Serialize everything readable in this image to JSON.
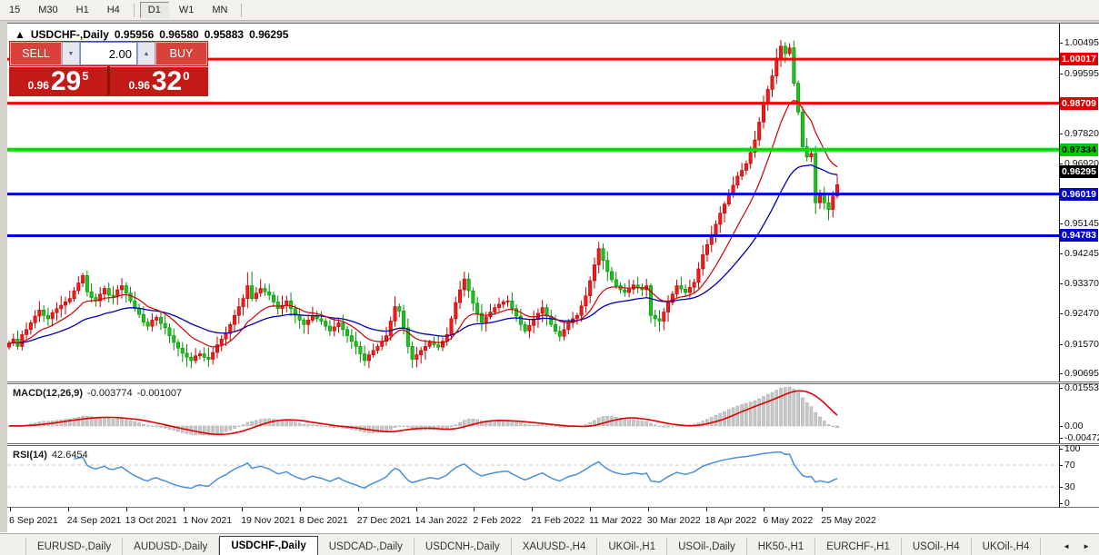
{
  "toolbar": {
    "timeframes": [
      {
        "label": "15",
        "active": false
      },
      {
        "label": "M30",
        "active": false
      },
      {
        "label": "H1",
        "active": false
      },
      {
        "label": "H4",
        "active": false
      },
      {
        "label": "D1",
        "active": true
      },
      {
        "label": "W1",
        "active": false
      },
      {
        "label": "MN",
        "active": false
      }
    ]
  },
  "title": {
    "collapse_icon": "▲",
    "symbol": "USDCHF-,Daily",
    "open": "0.95956",
    "high": "0.96580",
    "low": "0.95883",
    "close": "0.96295"
  },
  "trade_panel": {
    "sell_label": "SELL",
    "buy_label": "BUY",
    "volume": "2.00",
    "spinner_down_icon": "▼",
    "spinner_up_icon": "▲",
    "sell_price": {
      "prefix": "0.96",
      "big": "29",
      "sup": "5"
    },
    "buy_price": {
      "prefix": "0.96",
      "big": "32",
      "sup": "0"
    }
  },
  "indicators": {
    "macd": {
      "name": "MACD(12,26,9)",
      "value_main": "-0.003774",
      "value_signal": "-0.001007"
    },
    "rsi": {
      "name": "RSI(14)",
      "value": "42.6454"
    }
  },
  "chart_data": {
    "type": "candlestick",
    "symbol": "USDCHF-,Daily",
    "ylim": [
      0.9046,
      1.0107
    ],
    "y_ticks": [
      1.00495,
      0.99595,
      0.9782,
      0.9692,
      0.95145,
      0.94245,
      0.9337,
      0.9247,
      0.9157,
      0.90695
    ],
    "x_ticks": [
      "6 Sep 2021",
      "24 Sep 2021",
      "13 Oct 2021",
      "1 Nov 2021",
      "19 Nov 2021",
      "8 Dec 2021",
      "27 Dec 2021",
      "14 Jan 2022",
      "2 Feb 2022",
      "21 Feb 2022",
      "11 Mar 2022",
      "30 Mar 2022",
      "18 Apr 2022",
      "6 May 2022",
      "25 May 2022"
    ],
    "h_lines": [
      {
        "price": 1.00017,
        "color": "#FF0000",
        "width": 3,
        "badge_bg": "#E00000",
        "badge_fg": "#fff"
      },
      {
        "price": 0.98709,
        "color": "#FF0000",
        "width": 3,
        "badge_bg": "#E00000",
        "badge_fg": "#fff"
      },
      {
        "price": 0.97334,
        "color": "#00DD00",
        "width": 4,
        "badge_bg": "#00CC00",
        "badge_fg": "#000"
      },
      {
        "price": 0.96019,
        "color": "#0000E0",
        "width": 3,
        "badge_bg": "#0000D0",
        "badge_fg": "#fff"
      },
      {
        "price": 0.94783,
        "color": "#0000E0",
        "width": 3,
        "badge_bg": "#0000D0",
        "badge_fg": "#fff"
      }
    ],
    "current_price": {
      "value": 0.96295,
      "badge_bg": "#000000",
      "badge_fg": "#fff"
    },
    "colors": {
      "bull_fill": "#EE1C1C",
      "bull_stroke": "#C00000",
      "bear_fill": "#1FC11F",
      "bear_stroke": "#009000",
      "ma_fast": "#CC0000",
      "ma_slow": "#0000B0",
      "macd_bar": "#C6C6C6",
      "macd_bar_edge": "#ADADAD",
      "macd_signal": "#DD0000",
      "rsi_line": "#4A90D9",
      "level_dash": "#C8C8C8"
    },
    "ma_fast_period": 13,
    "ma_slow_period": 34,
    "candles": {
      "first_open": 0.9148,
      "closes": [
        0.916,
        0.9172,
        0.915,
        0.9185,
        0.92,
        0.922,
        0.924,
        0.9258,
        0.9242,
        0.9232,
        0.925,
        0.9262,
        0.9272,
        0.9282,
        0.9292,
        0.9315,
        0.9338,
        0.936,
        0.9312,
        0.9295,
        0.9285,
        0.9305,
        0.9322,
        0.9302,
        0.9298,
        0.9318,
        0.933,
        0.9308,
        0.9285,
        0.9262,
        0.9245,
        0.9222,
        0.921,
        0.9228,
        0.9236,
        0.9218,
        0.9205,
        0.9182,
        0.9162,
        0.9145,
        0.913,
        0.9118,
        0.9108,
        0.9122,
        0.9128,
        0.9118,
        0.9112,
        0.9132,
        0.9155,
        0.9172,
        0.9188,
        0.9215,
        0.9242,
        0.9268,
        0.9292,
        0.933,
        0.9292,
        0.9308,
        0.9322,
        0.9312,
        0.9302,
        0.9282,
        0.9262,
        0.9272,
        0.9285,
        0.9262,
        0.9242,
        0.9228,
        0.9215,
        0.9228,
        0.9242,
        0.9232,
        0.9225,
        0.921,
        0.9196,
        0.9208,
        0.922,
        0.92,
        0.9182,
        0.9165,
        0.915,
        0.9128,
        0.9108,
        0.9125,
        0.9138,
        0.915,
        0.9165,
        0.9182,
        0.9225,
        0.9268,
        0.9255,
        0.9205,
        0.915,
        0.9112,
        0.9125,
        0.9138,
        0.915,
        0.9162,
        0.9155,
        0.9148,
        0.9165,
        0.9185,
        0.9232,
        0.928,
        0.9318,
        0.935,
        0.9315,
        0.9278,
        0.9248,
        0.9222,
        0.9238,
        0.9252,
        0.9265,
        0.9275,
        0.9282,
        0.9285,
        0.9262,
        0.924,
        0.9215,
        0.9196,
        0.9212,
        0.923,
        0.9248,
        0.9265,
        0.924,
        0.9215,
        0.9195,
        0.918,
        0.92,
        0.922,
        0.9232,
        0.9242,
        0.927,
        0.93,
        0.9345,
        0.9392,
        0.944,
        0.9405,
        0.9372,
        0.9348,
        0.933,
        0.9318,
        0.931,
        0.932,
        0.9332,
        0.9325,
        0.9318,
        0.933,
        0.9242,
        0.9232,
        0.9225,
        0.9252,
        0.928,
        0.9305,
        0.933,
        0.932,
        0.931,
        0.9325,
        0.934,
        0.938,
        0.9422,
        0.9452,
        0.9482,
        0.9512,
        0.9545,
        0.9572,
        0.96,
        0.9628,
        0.9655,
        0.9672,
        0.9692,
        0.9725,
        0.9762,
        0.9815,
        0.987,
        0.9912,
        0.9952,
        1.0005,
        1.004,
        1.0018,
        1.0035,
        0.993,
        0.9845,
        0.9742,
        0.9712,
        0.9722,
        0.9576,
        0.9605,
        0.9576,
        0.9556,
        0.9596,
        0.96295
      ],
      "last_ohlc": [
        0.95956,
        0.9658,
        0.95883,
        0.96295
      ],
      "high_overrides": {
        "17": 0.9368,
        "18": 0.9375,
        "55": 0.937,
        "56": 0.9372,
        "89": 0.9298,
        "105": 0.9372,
        "106": 0.9368,
        "136": 0.946,
        "137": 0.9455,
        "178": 1.0058,
        "179": 1.0052,
        "180": 1.0049
      },
      "low_overrides": {
        "42": 0.9085,
        "46": 0.909,
        "82": 0.9092,
        "83": 0.9086,
        "93": 0.9086,
        "119": 0.9188,
        "127": 0.9164,
        "150": 0.9194,
        "183": 0.9728,
        "186": 0.9543,
        "189": 0.9524
      }
    },
    "macd_panel": {
      "ticks": [
        {
          "label": "0.015533",
          "value": 0.015533
        },
        {
          "label": "0.00",
          "value": 0
        },
        {
          "label": "-0.004725",
          "value": -0.004725
        }
      ],
      "vmax": 0.015533,
      "vmin": -0.004725
    },
    "rsi_panel": {
      "ticks": [
        {
          "label": "100",
          "value": 100
        },
        {
          "label": "70",
          "value": 70
        },
        {
          "label": "30",
          "value": 30
        },
        {
          "label": "0",
          "value": 0
        }
      ],
      "levels": [
        70,
        30
      ],
      "period": 14
    }
  },
  "tabs": {
    "items": [
      {
        "label": "EURUSD-,Daily",
        "active": false
      },
      {
        "label": "AUDUSD-,Daily",
        "active": false
      },
      {
        "label": "USDCHF-,Daily",
        "active": true
      },
      {
        "label": "USDCAD-,Daily",
        "active": false
      },
      {
        "label": "USDCNH-,Daily",
        "active": false
      },
      {
        "label": "XAUUSD-,H4",
        "active": false
      },
      {
        "label": "UKOil-,H1",
        "active": false
      },
      {
        "label": "USOil-,Daily",
        "active": false
      },
      {
        "label": "HK50-,H1",
        "active": false
      },
      {
        "label": "EURCHF-,H1",
        "active": false
      },
      {
        "label": "USOil-,H4",
        "active": false
      },
      {
        "label": "UKOil-,H4",
        "active": false
      }
    ],
    "scroll_left_icon": "◄",
    "scroll_right_icon": "►"
  }
}
